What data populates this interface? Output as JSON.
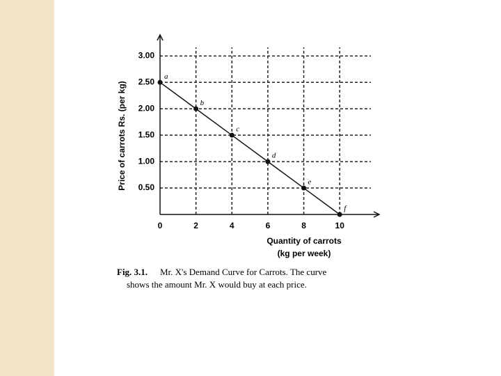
{
  "chart_data": {
    "type": "line",
    "ylabel": "Price of carrots Rs. (per kg)",
    "xlabel": [
      "Quantity of carrots",
      "(kg per week)"
    ],
    "caption_label": "Fig. 3.1.",
    "caption": [
      "Mr. X's Demand Curve for Carrots. The curve",
      "shows the amount Mr. X would buy at each price."
    ],
    "x": [
      0,
      2,
      4,
      6,
      8,
      10
    ],
    "series": [
      {
        "color": "#111111",
        "values": [
          2.5,
          2,
          1.5,
          1,
          0.5,
          0
        ],
        "point_labels": [
          "a",
          "b",
          "c",
          "d",
          "e",
          "f"
        ]
      }
    ],
    "xlim": [
      0,
      12.2
    ],
    "ylim": [
      0,
      3.4
    ],
    "xticks": [
      0,
      2,
      4,
      6,
      8,
      10
    ],
    "yticks": [
      {
        "value": 0.5,
        "label": "0.50"
      },
      {
        "value": 1,
        "label": "1.00"
      },
      {
        "value": 1.5,
        "label": "1.50"
      },
      {
        "value": 2,
        "label": "2.00"
      },
      {
        "value": 2.5,
        "label": "2.50"
      },
      {
        "value": 3,
        "label": "3.00"
      }
    ],
    "grid": true
  }
}
